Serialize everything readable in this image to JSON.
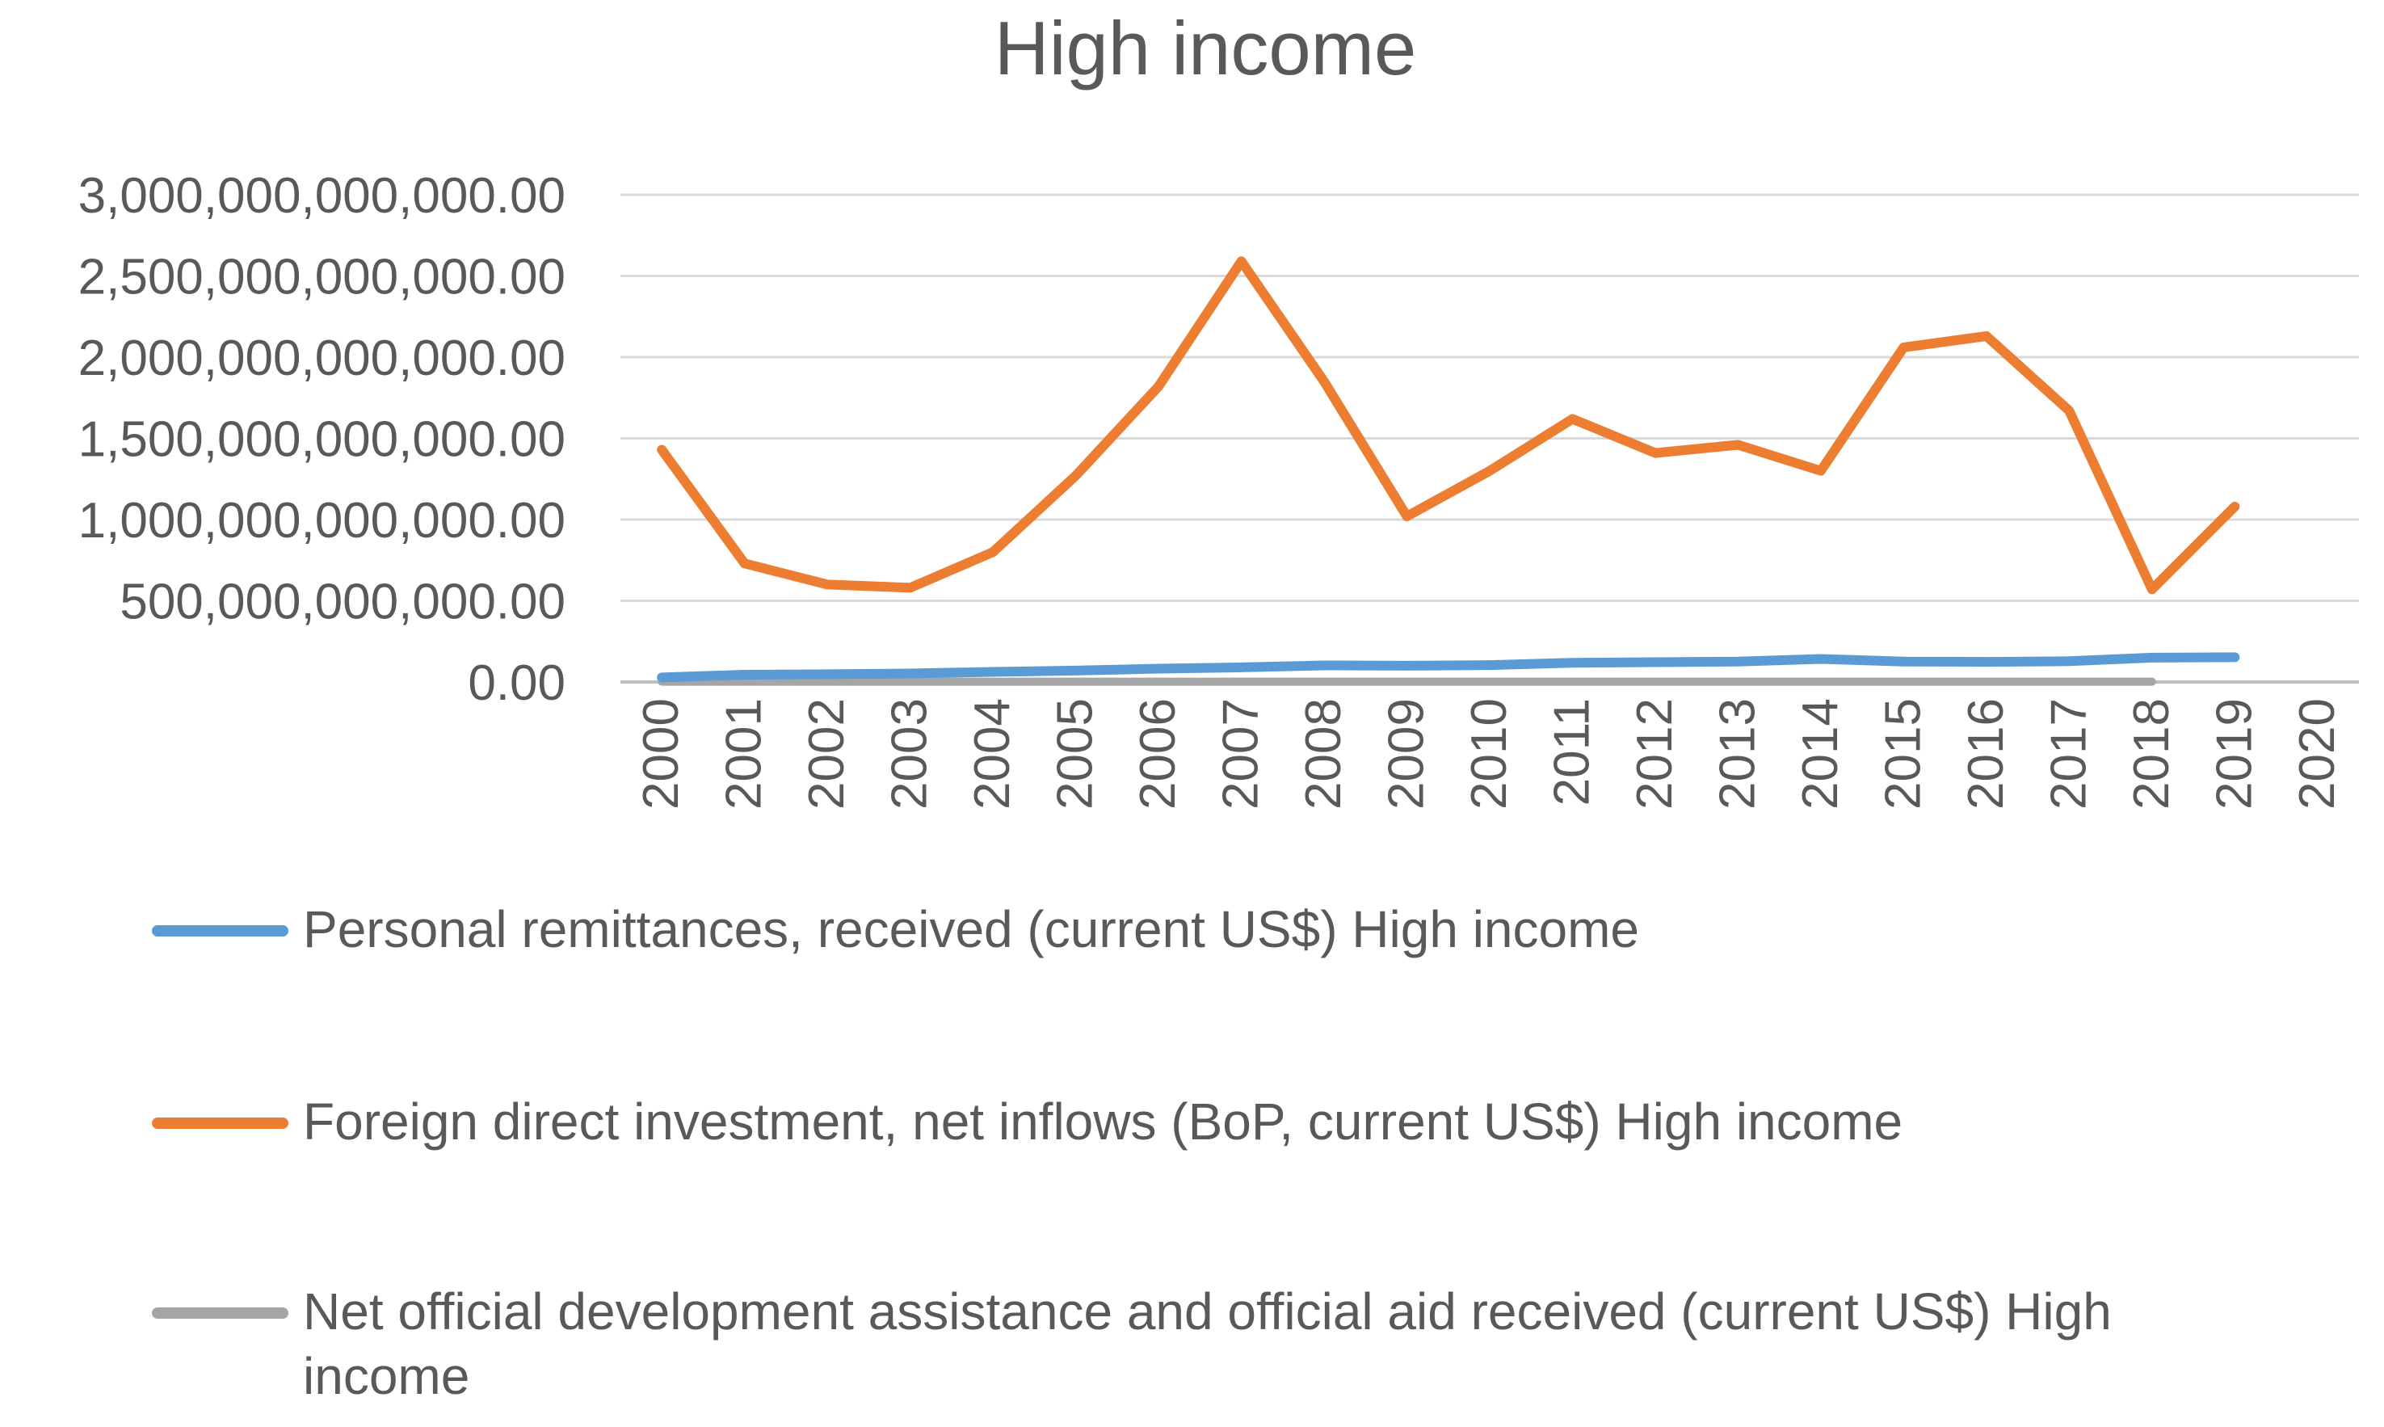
{
  "chart_data": {
    "type": "line",
    "title": "High income",
    "xlabel": "",
    "ylabel": "",
    "categories": [
      "2000",
      "2001",
      "2002",
      "2003",
      "2004",
      "2005",
      "2006",
      "2007",
      "2008",
      "2009",
      "2010",
      "2011",
      "2012",
      "2013",
      "2014",
      "2015",
      "2016",
      "2017",
      "2018",
      "2019",
      "2020"
    ],
    "y_tick_labels": [
      "0.00",
      "500,000,000,000.00",
      "1,000,000,000,000.00",
      "1,500,000,000,000.00",
      "2,000,000,000,000.00",
      "2,500,000,000,000.00",
      "3,000,000,000,000.00"
    ],
    "y_ticks": [
      0,
      500000000000,
      1000000000000,
      1500000000000,
      2000000000000,
      2500000000000,
      3000000000000
    ],
    "ylim": [
      0,
      3000000000000
    ],
    "grid": true,
    "legend_position": "bottom",
    "series": [
      {
        "name": "Personal remittances, received (current US$) High income",
        "color": "#5b9bd5",
        "values": [
          28000000000,
          45000000000,
          48000000000,
          52000000000,
          62000000000,
          70000000000,
          82000000000,
          90000000000,
          102000000000,
          100000000000,
          104000000000,
          118000000000,
          122000000000,
          126000000000,
          142000000000,
          126000000000,
          124000000000,
          128000000000,
          150000000000,
          152000000000,
          null
        ]
      },
      {
        "name": "Foreign direct investment, net inflows (BoP, current US$) High income",
        "color": "#ed7d31",
        "values": [
          1430000000000,
          730000000000,
          600000000000,
          580000000000,
          800000000000,
          1270000000000,
          1820000000000,
          2590000000000,
          1850000000000,
          1020000000000,
          1300000000000,
          1620000000000,
          1410000000000,
          1460000000000,
          1300000000000,
          2060000000000,
          2130000000000,
          1670000000000,
          570000000000,
          1080000000000,
          null
        ]
      },
      {
        "name": "Net official development assistance and official aid received (current US$) High income",
        "color": "#a5a5a5",
        "values": [
          2000000000,
          2000000000,
          2000000000,
          2000000000,
          2000000000,
          2000000000,
          2000000000,
          2000000000,
          2000000000,
          2000000000,
          2000000000,
          2000000000,
          2000000000,
          2000000000,
          2000000000,
          2000000000,
          2000000000,
          2000000000,
          2000000000,
          null,
          null
        ]
      }
    ]
  }
}
